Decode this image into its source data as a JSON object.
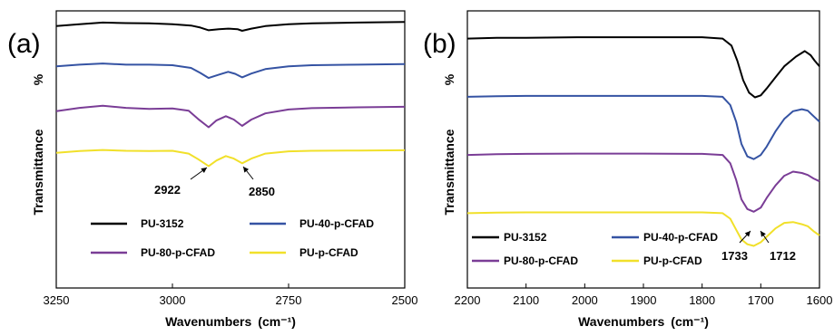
{
  "chart_data": [
    {
      "type": "line",
      "panel": "(a)",
      "xlabel": "Wavenumbers",
      "xunit": "(cm⁻¹)",
      "ylabel": "Transmittance",
      "yunit": "%",
      "xlim": [
        3250,
        2500
      ],
      "ylim": [
        0,
        100
      ],
      "xticks": [
        "3250",
        "3000",
        "2750",
        "2500"
      ],
      "legend_position": "bottom",
      "grid": false,
      "series": [
        {
          "name": "PU-3152",
          "color": "#000000",
          "points": [
            [
              3250,
              94.5
            ],
            [
              3200,
              95.2
            ],
            [
              3150,
              95.8
            ],
            [
              3100,
              95.6
            ],
            [
              3050,
              95.5
            ],
            [
              3000,
              95.2
            ],
            [
              2960,
              94.7
            ],
            [
              2940,
              94.0
            ],
            [
              2922,
              93.0
            ],
            [
              2900,
              93.4
            ],
            [
              2880,
              93.6
            ],
            [
              2860,
              93.4
            ],
            [
              2850,
              92.8
            ],
            [
              2830,
              93.6
            ],
            [
              2800,
              94.5
            ],
            [
              2750,
              95.2
            ],
            [
              2700,
              95.5
            ],
            [
              2600,
              95.8
            ],
            [
              2500,
              96.0
            ]
          ]
        },
        {
          "name": "PU-40-p-CFAD",
          "color": "#3553a3",
          "points": [
            [
              3250,
              80.0
            ],
            [
              3200,
              80.6
            ],
            [
              3150,
              81.0
            ],
            [
              3100,
              80.6
            ],
            [
              3050,
              80.6
            ],
            [
              3000,
              80.4
            ],
            [
              2960,
              79.4
            ],
            [
              2940,
              77.6
            ],
            [
              2922,
              75.8
            ],
            [
              2900,
              77.0
            ],
            [
              2880,
              78.0
            ],
            [
              2865,
              77.3
            ],
            [
              2850,
              76.0
            ],
            [
              2830,
              77.4
            ],
            [
              2800,
              79.0
            ],
            [
              2750,
              80.0
            ],
            [
              2700,
              80.4
            ],
            [
              2600,
              80.6
            ],
            [
              2500,
              80.8
            ]
          ]
        },
        {
          "name": "PU-80-p-CFAD",
          "color": "#7a3d96",
          "points": [
            [
              3250,
              63.8
            ],
            [
              3200,
              65.0
            ],
            [
              3150,
              65.8
            ],
            [
              3100,
              65.0
            ],
            [
              3050,
              64.6
            ],
            [
              3000,
              64.8
            ],
            [
              2965,
              64.0
            ],
            [
              2945,
              61.0
            ],
            [
              2922,
              58.0
            ],
            [
              2905,
              60.5
            ],
            [
              2885,
              62.0
            ],
            [
              2868,
              60.8
            ],
            [
              2850,
              58.5
            ],
            [
              2830,
              60.8
            ],
            [
              2800,
              63.0
            ],
            [
              2750,
              64.4
            ],
            [
              2700,
              64.9
            ],
            [
              2600,
              65.2
            ],
            [
              2500,
              65.4
            ]
          ]
        },
        {
          "name": "PU-p-CFAD",
          "color": "#f1e02a",
          "points": [
            [
              3250,
              48.8
            ],
            [
              3200,
              49.4
            ],
            [
              3150,
              49.8
            ],
            [
              3100,
              49.5
            ],
            [
              3050,
              49.4
            ],
            [
              3000,
              49.5
            ],
            [
              2965,
              48.5
            ],
            [
              2945,
              46.5
            ],
            [
              2922,
              44.0
            ],
            [
              2905,
              46.0
            ],
            [
              2885,
              47.6
            ],
            [
              2868,
              46.7
            ],
            [
              2850,
              45.0
            ],
            [
              2830,
              46.7
            ],
            [
              2800,
              48.5
            ],
            [
              2750,
              49.3
            ],
            [
              2700,
              49.5
            ],
            [
              2600,
              49.6
            ],
            [
              2500,
              49.7
            ]
          ]
        }
      ],
      "annotations": [
        {
          "text": "2922",
          "x": 2922
        },
        {
          "text": "2850",
          "x": 2850
        }
      ]
    },
    {
      "type": "line",
      "panel": "(b)",
      "xlabel": "Wavenumbers",
      "xunit": "(cm⁻¹)",
      "ylabel": "Transmittance",
      "yunit": "%",
      "xlim": [
        2200,
        1600
      ],
      "ylim": [
        0,
        100
      ],
      "xticks": [
        "2200",
        "2100",
        "2000",
        "1900",
        "1800",
        "1700",
        "1600"
      ],
      "legend_position": "bottom",
      "grid": false,
      "series": [
        {
          "name": "PU-3152",
          "color": "#000000",
          "points": [
            [
              2200,
              90.0
            ],
            [
              2150,
              90.3
            ],
            [
              2100,
              90.3
            ],
            [
              2000,
              90.5
            ],
            [
              1900,
              90.5
            ],
            [
              1800,
              90.5
            ],
            [
              1765,
              90.0
            ],
            [
              1750,
              87.5
            ],
            [
              1740,
              82.0
            ],
            [
              1730,
              75.0
            ],
            [
              1720,
              70.5
            ],
            [
              1710,
              68.8
            ],
            [
              1700,
              69.5
            ],
            [
              1690,
              72.0
            ],
            [
              1675,
              76.0
            ],
            [
              1660,
              80.0
            ],
            [
              1640,
              83.5
            ],
            [
              1625,
              85.5
            ],
            [
              1615,
              84.0
            ],
            [
              1608,
              82.0
            ],
            [
              1600,
              80.0
            ]
          ]
        },
        {
          "name": "PU-40-p-CFAD",
          "color": "#3553a3",
          "points": [
            [
              2200,
              69.0
            ],
            [
              2150,
              69.2
            ],
            [
              2100,
              69.3
            ],
            [
              2000,
              69.3
            ],
            [
              1900,
              69.3
            ],
            [
              1800,
              69.3
            ],
            [
              1765,
              69.0
            ],
            [
              1752,
              66.0
            ],
            [
              1742,
              60.0
            ],
            [
              1733,
              52.0
            ],
            [
              1723,
              47.5
            ],
            [
              1712,
              46.5
            ],
            [
              1700,
              48.0
            ],
            [
              1690,
              51.0
            ],
            [
              1675,
              56.5
            ],
            [
              1660,
              61.0
            ],
            [
              1645,
              63.8
            ],
            [
              1630,
              64.5
            ],
            [
              1620,
              64.0
            ],
            [
              1610,
              62.0
            ],
            [
              1600,
              60.0
            ]
          ]
        },
        {
          "name": "PU-80-p-CFAD",
          "color": "#7a3d96",
          "points": [
            [
              2200,
              48.0
            ],
            [
              2150,
              48.3
            ],
            [
              2100,
              48.4
            ],
            [
              2000,
              48.5
            ],
            [
              1900,
              48.5
            ],
            [
              1800,
              48.4
            ],
            [
              1765,
              48.0
            ],
            [
              1752,
              45.0
            ],
            [
              1742,
              39.0
            ],
            [
              1733,
              32.0
            ],
            [
              1723,
              28.5
            ],
            [
              1712,
              27.5
            ],
            [
              1700,
              29.0
            ],
            [
              1690,
              32.5
            ],
            [
              1675,
              37.0
            ],
            [
              1660,
              40.5
            ],
            [
              1645,
              42.0
            ],
            [
              1630,
              41.5
            ],
            [
              1620,
              40.8
            ],
            [
              1610,
              39.5
            ],
            [
              1600,
              38.5
            ]
          ]
        },
        {
          "name": "PU-p-CFAD",
          "color": "#f1e02a",
          "points": [
            [
              2200,
              27.0
            ],
            [
              2150,
              27.2
            ],
            [
              2100,
              27.3
            ],
            [
              2000,
              27.3
            ],
            [
              1900,
              27.3
            ],
            [
              1800,
              27.3
            ],
            [
              1765,
              27.0
            ],
            [
              1752,
              25.0
            ],
            [
              1742,
              21.0
            ],
            [
              1733,
              17.5
            ],
            [
              1723,
              15.8
            ],
            [
              1712,
              15.2
            ],
            [
              1700,
              16.5
            ],
            [
              1690,
              18.5
            ],
            [
              1675,
              21.5
            ],
            [
              1660,
              23.5
            ],
            [
              1645,
              23.8
            ],
            [
              1630,
              23.0
            ],
            [
              1620,
              22.3
            ],
            [
              1610,
              20.5
            ],
            [
              1600,
              19.0
            ]
          ]
        }
      ],
      "annotations": [
        {
          "text": "1733",
          "x": 1733
        },
        {
          "text": "1712",
          "x": 1712
        }
      ]
    }
  ]
}
